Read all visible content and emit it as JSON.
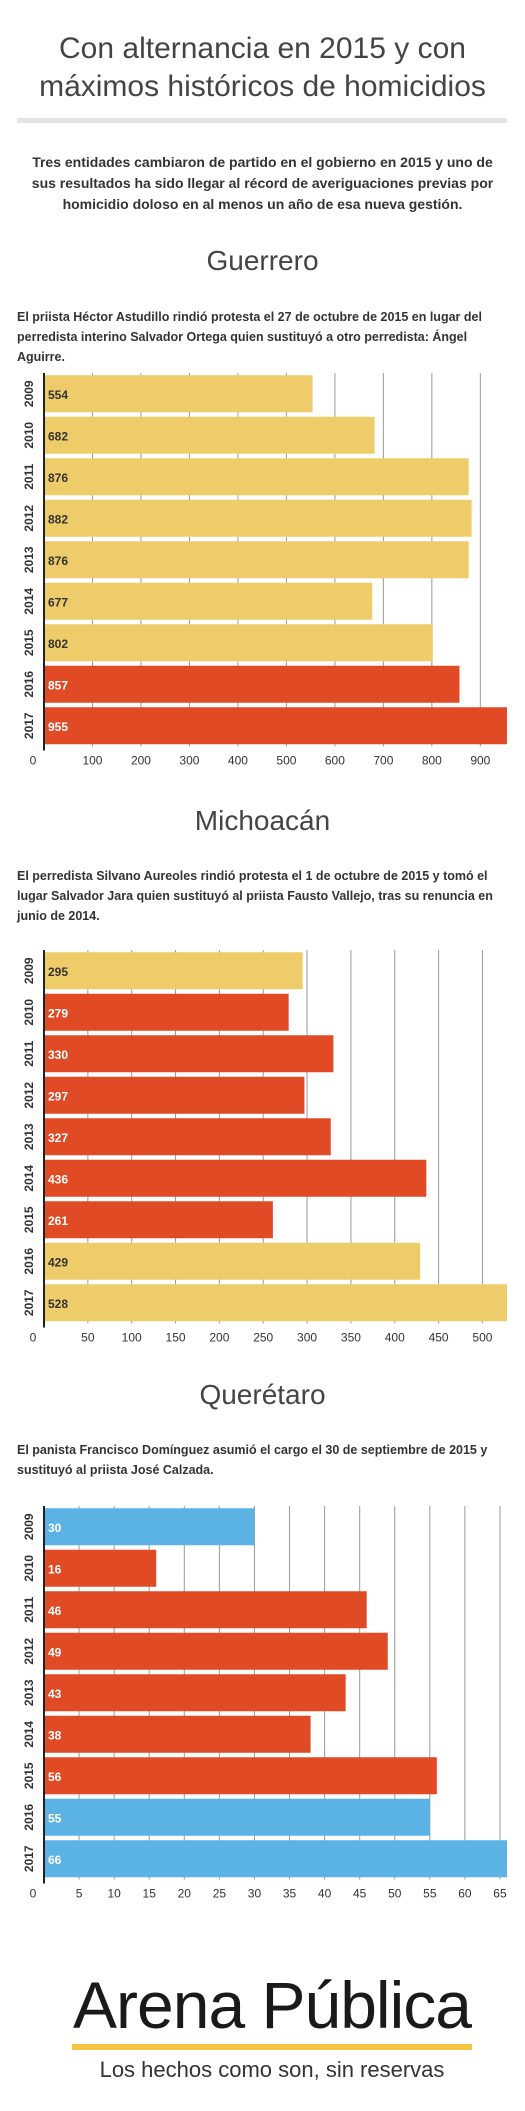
{
  "page": {
    "title": "Con alternancia en 2015 y con máximos históricos de homicidios",
    "intro": "Tres entidades cambiaron de partido en el gobierno en 2015 y uno de sus resultados ha sido llegar al récord de averiguaciones previas por homicidio doloso en al menos un año de esa nueva gestión."
  },
  "colors": {
    "amarillo": "#efcc6a",
    "rojo": "#e04b26",
    "azul": "#5ab3e4",
    "axis": "#222222",
    "grid": "#999999"
  },
  "sections": [
    {
      "heading": "Guerrero",
      "description": "El priista Héctor Astudillo rindió protesta el 27 de octubre de 2015 en lugar del perredista interino Salvador Ortega quien sustituyó a otro perredista: Ángel Aguirre."
    },
    {
      "heading": "Michoacán",
      "description": "El perredista Silvano Aureoles rindió protesta el 1 de octubre de 2015 y tomó el lugar Salvador Jara quien sustituyó al priista Fausto Vallejo, tras su renuncia en junio de 2014."
    },
    {
      "heading": "Querétaro",
      "description": "El panista Francisco Domínguez asumió el cargo el 30 de septiembre de 2015 y sustituyó al priista José Calzada."
    }
  ],
  "chart_data": [
    {
      "type": "bar",
      "orientation": "horizontal",
      "categories": [
        "2009",
        "2010",
        "2011",
        "2012",
        "2013",
        "2014",
        "2015",
        "2016",
        "2017"
      ],
      "values": [
        554,
        682,
        876,
        882,
        876,
        677,
        802,
        857,
        955
      ],
      "colors": [
        "amarillo",
        "amarillo",
        "amarillo",
        "amarillo",
        "amarillo",
        "amarillo",
        "amarillo",
        "rojo",
        "rojo"
      ],
      "xlim": [
        0,
        955
      ],
      "xticks": [
        0,
        100,
        200,
        300,
        400,
        500,
        600,
        700,
        800,
        900
      ],
      "grid": true
    },
    {
      "type": "bar",
      "orientation": "horizontal",
      "categories": [
        "2009",
        "2010",
        "2011",
        "2012",
        "2013",
        "2014",
        "2015",
        "2016",
        "2017"
      ],
      "values": [
        295,
        279,
        330,
        297,
        327,
        436,
        261,
        429,
        528
      ],
      "colors": [
        "amarillo",
        "rojo",
        "rojo",
        "rojo",
        "rojo",
        "rojo",
        "rojo",
        "amarillo",
        "amarillo"
      ],
      "xlim": [
        0,
        528
      ],
      "xticks": [
        0,
        50,
        100,
        150,
        200,
        250,
        300,
        350,
        400,
        450,
        500
      ],
      "grid": true
    },
    {
      "type": "bar",
      "orientation": "horizontal",
      "categories": [
        "2009",
        "2010",
        "2011",
        "2012",
        "2013",
        "2014",
        "2015",
        "2016",
        "2017"
      ],
      "values": [
        30,
        16,
        46,
        49,
        43,
        38,
        56,
        55,
        66
      ],
      "colors": [
        "azul",
        "rojo",
        "rojo",
        "rojo",
        "rojo",
        "rojo",
        "rojo",
        "azul",
        "azul"
      ],
      "xlim": [
        0,
        66
      ],
      "xticks": [
        0,
        5,
        10,
        15,
        20,
        25,
        30,
        35,
        40,
        45,
        50,
        55,
        60,
        65
      ],
      "grid": true
    }
  ],
  "logo": {
    "name": "Arena Pública",
    "tagline": "Los hechos como son, sin reservas"
  }
}
